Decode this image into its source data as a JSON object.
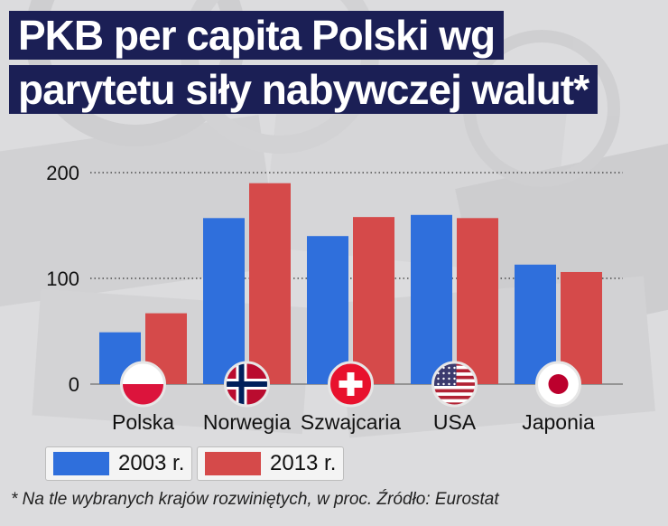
{
  "title": {
    "line1": "PKB per capita Polski wg",
    "line2": "parytetu siły nabywczej walut*"
  },
  "legend": [
    {
      "label": "2003 r.",
      "color": "#2f6fdc"
    },
    {
      "label": "2013 r.",
      "color": "#d54a4a"
    }
  ],
  "footnote": "* Na tle wybranych krajów rozwiniętych, w proc. Źródło: Eurostat",
  "flags": [
    "poland-flag-icon",
    "norway-flag-icon",
    "switzerland-flag-icon",
    "usa-flag-icon",
    "japan-flag-icon"
  ],
  "chart_data": {
    "type": "bar",
    "title": "PKB per capita Polski wg parytetu siły nabywczej walut*",
    "categories": [
      "Polska",
      "Norwegia",
      "Szwajcaria",
      "USA",
      "Japonia"
    ],
    "series": [
      {
        "name": "2003 r.",
        "values": [
          49,
          157,
          140,
          160,
          113
        ]
      },
      {
        "name": "2013 r.",
        "values": [
          67,
          190,
          158,
          157,
          106
        ]
      }
    ],
    "yticks": [
      0,
      100,
      200
    ],
    "ylim": [
      0,
      200
    ],
    "grid": "dotted horizontal",
    "legend_position": "bottom-left"
  }
}
